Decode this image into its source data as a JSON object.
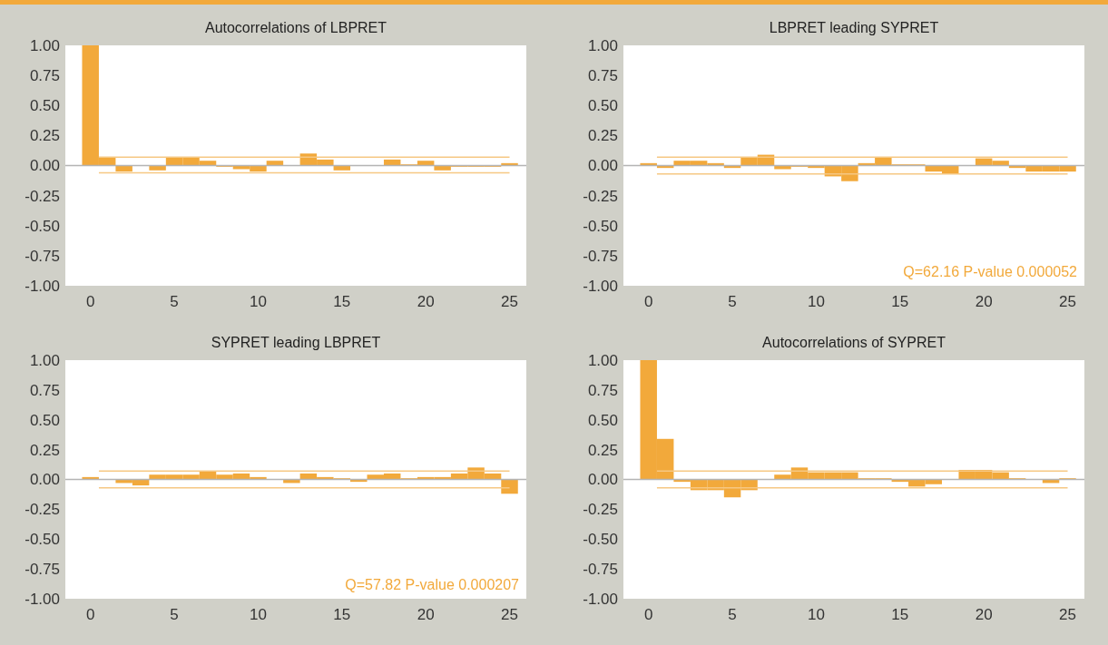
{
  "chart_data": [
    {
      "type": "bar",
      "title": "Autocorrelations of LBPRET",
      "x": [
        0,
        1,
        2,
        3,
        4,
        5,
        6,
        7,
        8,
        9,
        10,
        11,
        12,
        13,
        14,
        15,
        16,
        17,
        18,
        19,
        20,
        21,
        22,
        23,
        24,
        25
      ],
      "values": [
        1.0,
        0.07,
        -0.05,
        0,
        -0.04,
        0.07,
        0.07,
        0.04,
        -0.01,
        -0.03,
        -0.05,
        0.04,
        0,
        0.1,
        0.05,
        -0.04,
        0,
        0,
        0.05,
        0.01,
        0.04,
        -0.04,
        -0.01,
        -0.01,
        -0.01,
        0.02
      ],
      "color": "#f2a93b",
      "xlim": [
        -1.5,
        26
      ],
      "ylim": [
        -1,
        1
      ],
      "xticks": [
        0,
        5,
        10,
        15,
        20,
        25
      ],
      "yticks": [
        {
          "value": 1,
          "label": "1.00"
        },
        {
          "value": 0.75,
          "label": "0.75"
        },
        {
          "value": 0.5,
          "label": "0.50"
        },
        {
          "value": 0.25,
          "label": "0.25"
        },
        {
          "value": 0,
          "label": "0.00"
        },
        {
          "value": -0.25,
          "label": "-0.25"
        },
        {
          "value": -0.5,
          "label": "-0.50"
        },
        {
          "value": -0.75,
          "label": "-0.75"
        },
        {
          "value": -1,
          "label": "-1.00"
        }
      ],
      "ref_lines": [
        {
          "axis": "y",
          "value": 0.07,
          "color": "#f6c883"
        },
        {
          "axis": "y",
          "value": -0.06,
          "color": "#f6c883"
        }
      ]
    },
    {
      "type": "bar",
      "title": "LBPRET leading SYPRET",
      "x": [
        0,
        1,
        2,
        3,
        4,
        5,
        6,
        7,
        8,
        9,
        10,
        11,
        12,
        13,
        14,
        15,
        16,
        17,
        18,
        19,
        20,
        21,
        22,
        23,
        24,
        25
      ],
      "values": [
        0.02,
        -0.02,
        0.04,
        0.04,
        0.02,
        -0.02,
        0.07,
        0.09,
        -0.03,
        -0.01,
        -0.02,
        -0.09,
        -0.13,
        0.02,
        0.07,
        0.01,
        0.01,
        -0.05,
        -0.07,
        0,
        0.06,
        0.04,
        -0.02,
        -0.05,
        -0.05,
        -0.05
      ],
      "color": "#f2a93b",
      "xlim": [
        -1.5,
        26
      ],
      "ylim": [
        -1,
        1
      ],
      "xticks": [
        0,
        5,
        10,
        15,
        20,
        25
      ],
      "yticks": [
        {
          "value": 1,
          "label": "1.00"
        },
        {
          "value": 0.75,
          "label": "0.75"
        },
        {
          "value": 0.5,
          "label": "0.50"
        },
        {
          "value": 0.25,
          "label": "0.25"
        },
        {
          "value": 0,
          "label": "0.00"
        },
        {
          "value": -0.25,
          "label": "-0.25"
        },
        {
          "value": -0.5,
          "label": "-0.50"
        },
        {
          "value": -0.75,
          "label": "-0.75"
        },
        {
          "value": -1,
          "label": "-1.00"
        }
      ],
      "ref_lines": [
        {
          "axis": "y",
          "value": 0.07,
          "color": "#f6c883"
        },
        {
          "axis": "y",
          "value": -0.07,
          "color": "#f6c883"
        }
      ],
      "annotations": [
        "Q=62.16 P-value 0.000052"
      ]
    },
    {
      "type": "bar",
      "title": "SYPRET leading LBPRET",
      "x": [
        0,
        1,
        2,
        3,
        4,
        5,
        6,
        7,
        8,
        9,
        10,
        11,
        12,
        13,
        14,
        15,
        16,
        17,
        18,
        19,
        20,
        21,
        22,
        23,
        24,
        25
      ],
      "values": [
        0.02,
        0,
        -0.03,
        -0.05,
        0.04,
        0.04,
        0.04,
        0.07,
        0.04,
        0.05,
        0.02,
        0,
        -0.03,
        0.05,
        0.02,
        0.01,
        -0.02,
        0.04,
        0.05,
        0.01,
        0.02,
        0.02,
        0.05,
        0.1,
        0.05,
        -0.12
      ],
      "color": "#f2a93b",
      "xlim": [
        -1.5,
        26
      ],
      "ylim": [
        -1,
        1
      ],
      "xticks": [
        0,
        5,
        10,
        15,
        20,
        25
      ],
      "yticks": [
        {
          "value": 1,
          "label": "1.00"
        },
        {
          "value": 0.75,
          "label": "0.75"
        },
        {
          "value": 0.5,
          "label": "0.50"
        },
        {
          "value": 0.25,
          "label": "0.25"
        },
        {
          "value": 0,
          "label": "0.00"
        },
        {
          "value": -0.25,
          "label": "-0.25"
        },
        {
          "value": -0.5,
          "label": "-0.50"
        },
        {
          "value": -0.75,
          "label": "-0.75"
        },
        {
          "value": -1,
          "label": "-1.00"
        }
      ],
      "ref_lines": [
        {
          "axis": "y",
          "value": 0.07,
          "color": "#f6c883"
        },
        {
          "axis": "y",
          "value": -0.07,
          "color": "#f6c883"
        }
      ],
      "annotations": [
        "Q=57.82 P-value 0.000207"
      ]
    },
    {
      "type": "bar",
      "title": "Autocorrelations of SYPRET",
      "x": [
        0,
        1,
        2,
        3,
        4,
        5,
        6,
        7,
        8,
        9,
        10,
        11,
        12,
        13,
        14,
        15,
        16,
        17,
        18,
        19,
        20,
        21,
        22,
        23,
        24,
        25
      ],
      "values": [
        1.0,
        0.34,
        -0.02,
        -0.09,
        -0.09,
        -0.15,
        -0.09,
        0,
        0.04,
        0.1,
        0.06,
        0.06,
        0.06,
        0.01,
        0.01,
        -0.02,
        -0.06,
        -0.04,
        0,
        0.08,
        0.08,
        0.06,
        0.01,
        0,
        -0.03,
        0.01
      ],
      "color": "#f2a93b",
      "xlim": [
        -1.5,
        26
      ],
      "ylim": [
        -1,
        1
      ],
      "xticks": [
        0,
        5,
        10,
        15,
        20,
        25
      ],
      "yticks": [
        {
          "value": 1,
          "label": "1.00"
        },
        {
          "value": 0.75,
          "label": "0.75"
        },
        {
          "value": 0.5,
          "label": "0.50"
        },
        {
          "value": 0.25,
          "label": "0.25"
        },
        {
          "value": 0,
          "label": "0.00"
        },
        {
          "value": -0.25,
          "label": "-0.25"
        },
        {
          "value": -0.5,
          "label": "-0.50"
        },
        {
          "value": -0.75,
          "label": "-0.75"
        },
        {
          "value": -1,
          "label": "-1.00"
        }
      ],
      "ref_lines": [
        {
          "axis": "y",
          "value": 0.07,
          "color": "#f6c883"
        },
        {
          "axis": "y",
          "value": -0.07,
          "color": "#f6c883"
        }
      ]
    }
  ]
}
